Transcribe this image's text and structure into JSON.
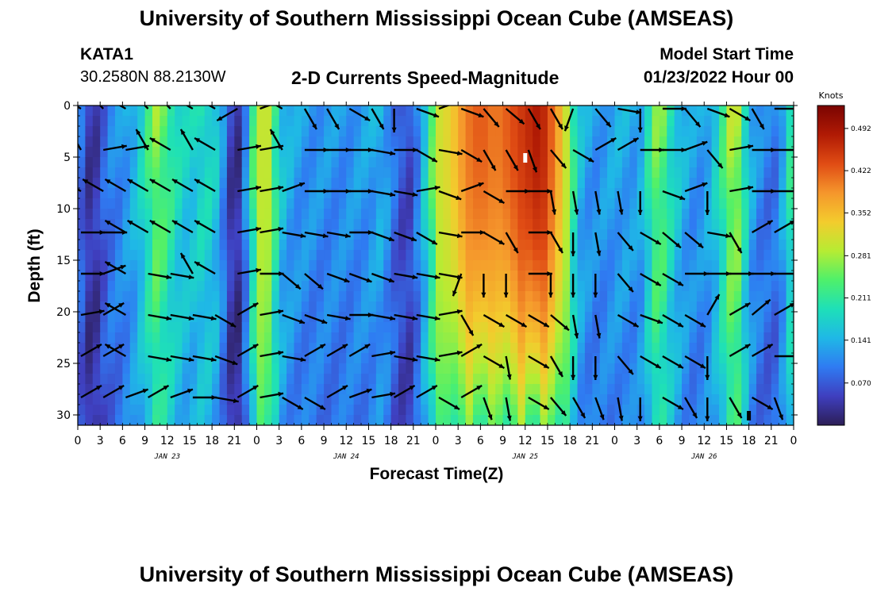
{
  "header": {
    "title": "University of Southern Mississippi Ocean Cube (AMSEAS)",
    "station_id": "KATA1",
    "coordinates": "30.2580N  88.2130W",
    "subtitle": "2-D Currents Speed-Magnitude",
    "model_start_label": "Model Start Time",
    "model_start_value": "01/23/2022 Hour 00"
  },
  "footer": {
    "title": "University of Southern Mississippi Ocean Cube (AMSEAS)"
  },
  "chart_data": {
    "type": "heatmap",
    "title": "2-D Currents Speed-Magnitude",
    "xlabel": "Forecast Time(Z)",
    "ylabel": "Depth (ft)",
    "xlim_hours": [
      0,
      96
    ],
    "ylim_depth_ft": [
      0,
      31
    ],
    "y_ticks": [
      "0",
      "5",
      "10",
      "15",
      "20",
      "25",
      "30"
    ],
    "x_tick_labels": [
      "0",
      "3",
      "6",
      "9",
      "12",
      "15",
      "18",
      "21",
      "0",
      "3",
      "6",
      "9",
      "12",
      "15",
      "18",
      "21",
      "0",
      "3",
      "6",
      "9",
      "12",
      "15",
      "18",
      "21",
      "0",
      "3",
      "6",
      "9",
      "12",
      "15",
      "18",
      "21",
      "0"
    ],
    "day_labels": [
      {
        "label": "JAN 23",
        "hour": 12
      },
      {
        "label": "JAN 24",
        "hour": 36
      },
      {
        "label": "JAN 25",
        "hour": 60
      },
      {
        "label": "JAN 26",
        "hour": 84
      }
    ],
    "colorbar": {
      "units": "Knots",
      "min": 0.0,
      "max": 0.53,
      "ticks": [
        "0.492",
        "0.422",
        "0.352",
        "0.281",
        "0.211",
        "0.141",
        "0.070"
      ],
      "tick_values": [
        0.492,
        0.422,
        0.352,
        0.281,
        0.211,
        0.141,
        0.07
      ]
    },
    "speed_profile_by_hour": [
      {
        "h": 0,
        "s": 0.12
      },
      {
        "h": 1,
        "s": 0.05
      },
      {
        "h": 2,
        "s": 0.03
      },
      {
        "h": 3,
        "s": 0.06
      },
      {
        "h": 4,
        "s": 0.1
      },
      {
        "h": 6,
        "s": 0.12
      },
      {
        "h": 8,
        "s": 0.16
      },
      {
        "h": 10.5,
        "s": 0.27
      },
      {
        "h": 12,
        "s": 0.24
      },
      {
        "h": 13,
        "s": 0.2
      },
      {
        "h": 15,
        "s": 0.17
      },
      {
        "h": 17,
        "s": 0.2
      },
      {
        "h": 19,
        "s": 0.16
      },
      {
        "h": 20,
        "s": 0.07
      },
      {
        "h": 21,
        "s": 0.02
      },
      {
        "h": 22,
        "s": 0.05
      },
      {
        "h": 23,
        "s": 0.18
      },
      {
        "h": 24,
        "s": 0.28
      },
      {
        "h": 25,
        "s": 0.32
      },
      {
        "h": 26,
        "s": 0.28
      },
      {
        "h": 27,
        "s": 0.17
      },
      {
        "h": 29,
        "s": 0.13
      },
      {
        "h": 32,
        "s": 0.12
      },
      {
        "h": 36,
        "s": 0.12
      },
      {
        "h": 39,
        "s": 0.13
      },
      {
        "h": 41,
        "s": 0.15
      },
      {
        "h": 42,
        "s": 0.1
      },
      {
        "h": 43,
        "s": 0.08
      },
      {
        "h": 44,
        "s": 0.05
      },
      {
        "h": 45,
        "s": 0.07
      },
      {
        "h": 46,
        "s": 0.14
      },
      {
        "h": 47,
        "s": 0.2
      },
      {
        "h": 48,
        "s": 0.3
      },
      {
        "h": 50,
        "s": 0.33
      },
      {
        "h": 52,
        "s": 0.4
      },
      {
        "h": 54,
        "s": 0.43
      },
      {
        "h": 56,
        "s": 0.4
      },
      {
        "h": 58,
        "s": 0.43
      },
      {
        "h": 60,
        "s": 0.46
      },
      {
        "h": 62,
        "s": 0.49
      },
      {
        "h": 64,
        "s": 0.4
      },
      {
        "h": 66,
        "s": 0.27
      },
      {
        "h": 67,
        "s": 0.16
      },
      {
        "h": 69,
        "s": 0.12
      },
      {
        "h": 71,
        "s": 0.13
      },
      {
        "h": 73,
        "s": 0.14
      },
      {
        "h": 75,
        "s": 0.13
      },
      {
        "h": 76,
        "s": 0.16
      },
      {
        "h": 77,
        "s": 0.24
      },
      {
        "h": 78,
        "s": 0.28
      },
      {
        "h": 79,
        "s": 0.22
      },
      {
        "h": 81,
        "s": 0.15
      },
      {
        "h": 83,
        "s": 0.12
      },
      {
        "h": 85,
        "s": 0.15
      },
      {
        "h": 87,
        "s": 0.25
      },
      {
        "h": 88,
        "s": 0.32
      },
      {
        "h": 89,
        "s": 0.25
      },
      {
        "h": 90,
        "s": 0.15
      },
      {
        "h": 92,
        "s": 0.1
      },
      {
        "h": 94,
        "s": 0.1
      },
      {
        "h": 95,
        "s": 0.18
      },
      {
        "h": 96,
        "s": 0.24
      }
    ],
    "vector_grid": {
      "hours_step": 3,
      "depths_ft": [
        0,
        4,
        8,
        12,
        16,
        20,
        24,
        28
      ],
      "direction_deg": [
        [
          300,
          315,
          300,
          315,
          315,
          300,
          300,
          240,
          70,
          300,
          150,
          150,
          120,
          150,
          180,
          110,
          70,
          110,
          140,
          130,
          150,
          150,
          200,
          140,
          100,
          180,
          90,
          140,
          110,
          120,
          150,
          90,
          140
        ],
        [
          330,
          80,
          80,
          330,
          300,
          330,
          300,
          80,
          80,
          330,
          90,
          90,
          90,
          100,
          90,
          120,
          100,
          120,
          150,
          150,
          160,
          140,
          120,
          60,
          60,
          90,
          90,
          70,
          140,
          80,
          90,
          90,
          90
        ],
        [
          300,
          300,
          300,
          300,
          300,
          300,
          300,
          80,
          80,
          70,
          90,
          90,
          90,
          100,
          100,
          80,
          110,
          70,
          120,
          90,
          90,
          170,
          170,
          170,
          170,
          180,
          110,
          70,
          180,
          80,
          90,
          90,
          90
        ],
        [
          90,
          90,
          300,
          300,
          300,
          300,
          300,
          80,
          80,
          100,
          100,
          100,
          90,
          110,
          110,
          120,
          100,
          90,
          120,
          150,
          90,
          150,
          180,
          170,
          140,
          120,
          130,
          130,
          100,
          150,
          60,
          60,
          60
        ],
        [
          90,
          70,
          300,
          100,
          100,
          330,
          300,
          80,
          90,
          130,
          130,
          110,
          110,
          110,
          100,
          100,
          100,
          200,
          180,
          180,
          90,
          180,
          180,
          180,
          140,
          120,
          120,
          90,
          90,
          90,
          90,
          90,
          90
        ],
        [
          80,
          60,
          300,
          100,
          100,
          100,
          120,
          60,
          80,
          110,
          110,
          100,
          90,
          100,
          100,
          100,
          80,
          150,
          120,
          120,
          120,
          130,
          170,
          170,
          120,
          110,
          120,
          120,
          30,
          60,
          50,
          60,
          120
        ],
        [
          60,
          60,
          300,
          100,
          100,
          100,
          110,
          60,
          80,
          100,
          60,
          60,
          60,
          80,
          100,
          100,
          80,
          60,
          120,
          170,
          120,
          150,
          180,
          180,
          140,
          120,
          120,
          120,
          180,
          60,
          60,
          90,
          160
        ],
        [
          60,
          60,
          70,
          60,
          70,
          90,
          100,
          60,
          80,
          120,
          120,
          60,
          70,
          80,
          60,
          60,
          120,
          60,
          160,
          170,
          120,
          140,
          150,
          160,
          170,
          180,
          120,
          150,
          180,
          150,
          120,
          160,
          60
        ]
      ]
    },
    "markers": [
      {
        "kind": "white-tick",
        "hour": 60,
        "depth_ft": 5
      },
      {
        "kind": "black-tick",
        "hour": 90,
        "depth_ft": 30
      }
    ]
  },
  "colors": {
    "background": "#ffffff",
    "vector": "#000000",
    "colormap": [
      "#2c1e56",
      "#3f3fbf",
      "#2f7bf2",
      "#1fb8e6",
      "#1ee0b8",
      "#4ff06a",
      "#b6ec33",
      "#f3cc2d",
      "#f5962c",
      "#e04c14",
      "#b01a04",
      "#7a0402"
    ]
  }
}
